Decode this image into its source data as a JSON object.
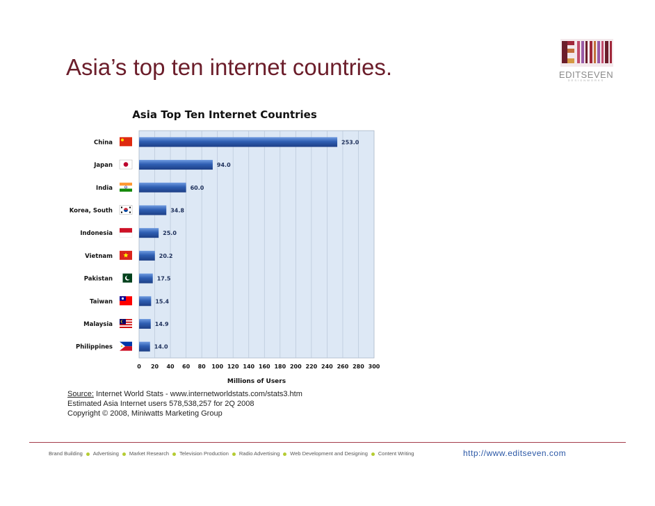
{
  "slide": {
    "title": "Asia’s top ten internet countries."
  },
  "logo": {
    "name": "EDITSEVEN",
    "tagline": "DESIGNWORKS",
    "colors": [
      "#6b1d2a",
      "#a0273a",
      "#c2703a",
      "#d59a44",
      "#9a5ba6",
      "#c04b6a"
    ]
  },
  "chart_data": {
    "type": "bar",
    "orientation": "horizontal",
    "title": "Asia Top Ten Internet Countries",
    "xlabel": "Millions of Users",
    "ylabel": "",
    "xlim": [
      0,
      300
    ],
    "xticks": [
      0,
      20,
      40,
      60,
      80,
      100,
      120,
      140,
      160,
      180,
      200,
      220,
      240,
      260,
      280,
      300
    ],
    "grid": true,
    "categories": [
      "China",
      "Japan",
      "India",
      "Korea, South",
      "Indonesia",
      "Vietnam",
      "Pakistan",
      "Taiwan",
      "Malaysia",
      "Philippines"
    ],
    "values": [
      253.0,
      94.0,
      60.0,
      34.8,
      25.0,
      20.2,
      17.5,
      15.4,
      14.9,
      14.0
    ],
    "data_labels": [
      "253.0",
      "94.0",
      "60.0",
      "34.8",
      "25.0",
      "20.2",
      "17.5",
      "15.4",
      "14.9",
      "14.0"
    ],
    "flags": [
      "china-flag",
      "japan-flag",
      "india-flag",
      "south-korea-flag",
      "indonesia-flag",
      "vietnam-flag",
      "pakistan-flag",
      "taiwan-flag",
      "malaysia-flag",
      "philippines-flag"
    ],
    "bar_color": "#2f5fb3",
    "plot_background": "#dde8f5"
  },
  "source": {
    "line1_label": "Source:",
    "line1_text": " Internet World Stats  -  www.internetworldstats.com/stats3.htm",
    "line2": "Estimated Asia Internet users 578,538,257 for 2Q 2008",
    "line3": "Copyright © 2008, Miniwatts Marketing Group"
  },
  "footer": {
    "services": [
      "Brand Building",
      "Advertising",
      "Market Research",
      "Television Production",
      "Radio Advertising",
      "Web Development and Designing",
      "Content Writing"
    ],
    "url": "http://www.editseven.com",
    "accent": "#b5cc33",
    "line_color": "#a33a4a"
  }
}
